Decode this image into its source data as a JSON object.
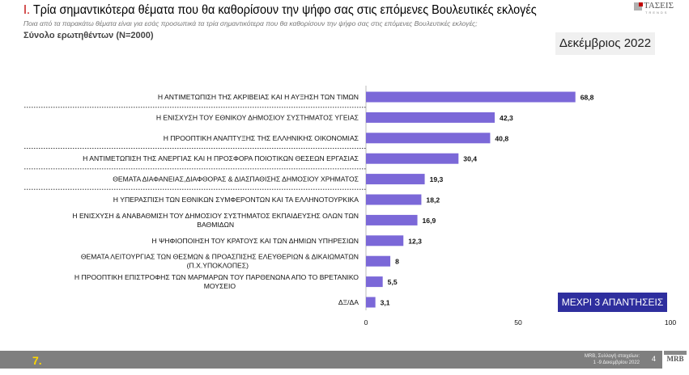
{
  "header": {
    "title_num": "I.",
    "title": " Τρία σημαντικότερα θέματα που θα καθορίσουν την ψήφο σας στις επόμενες Βουλευτικές εκλογές",
    "subtitle": "Ποια από τα παρακάτω θέματα είναι για εσάς προσωπικά τα τρία σημαντικότερα που θα καθορίσουν την ψήφο σας στις επόμενες Βουλευτικές εκλογές;",
    "base": "Σύνολο ερωτηθέντων (N=2000)",
    "date": "Δεκέμβριος 2022",
    "logo": "ΤΑΣΕΙΣ TRENDS"
  },
  "badge": "ΜΕΧΡΙ 3 ΑΠΑΝΤΗΣΕΙΣ",
  "footer": {
    "page_label": "7.",
    "source_line1": "MRB, Συλλογή στοιχείων:",
    "source_line2": "1 -9 Δεκεμβρίου 2022",
    "page": "4",
    "logo": "MRB"
  },
  "chart_data": {
    "type": "bar",
    "orientation": "horizontal",
    "bar_color": "#7b68d8",
    "categories": [
      [
        "Η ΑΝΤΙΜΕΤΩΠΙΣΗ ΤΗΣ ΑΚΡΙΒΕΙΑΣ ΚΑΙ Η ΑΥΞΗΣΗ ΤΩΝ ΤΙΜΩΝ"
      ],
      [
        "Η ΕΝΙΣΧΥΣΗ ΤΟΥ ΕΘΝΙΚΟΥ ΔΗΜΟΣΙΟΥ ΣΥΣΤΗΜΑΤΟΣ ΥΓΕΙΑΣ"
      ],
      [
        "Η ΠΡΟΟΠΤΙΚΗ ΑΝΑΠΤΥΞΗΣ ΤΗΣ ΕΛΛΗΝΙΚΗΣ ΟΙΚΟΝΟΜΙΑΣ"
      ],
      [
        "Η ΑΝΤΙΜΕΤΩΠΙΣΗ ΤΗΣ ΑΝΕΡΓΙΑΣ ΚΑΙ Η ΠΡΟΣΦΟΡΑ ΠΟΙΟΤΙΚΩΝ ΘΕΣΕΩΝ ΕΡΓΑΣΙΑΣ"
      ],
      [
        "ΘΕΜΑΤΑ ΔΙΑΦΑΝΕΙΑΣ,ΔΙΑΦΘΟΡΑΣ & ΔΙΑΣΠΑΘΙΣΗΣ ΔΗΜΟΣΙΟΥ ΧΡΗΜΑΤΟΣ"
      ],
      [
        "Η ΥΠΕΡΑΣΠΙΣΗ ΤΩΝ ΕΘΝΙΚΩΝ ΣΥΜΦΕΡΟΝΤΩΝ ΚΑΙ ΤΑ ΕΛΛΗΝΟΤΟΥΡΚΙΚΑ"
      ],
      [
        "Η ΕΝΙΣΧΥΣΗ & ΑΝΑΒΑΘΜΙΣΗ ΤΟΥ ΔΗΜΟΣΙΟΥ ΣΥΣΤΗΜΑΤΟΣ ΕΚΠΑΙΔΕΥΣΗΣ ΟΛΩΝ ΤΩΝ",
        "ΒΑΘΜΙΔΩΝ"
      ],
      [
        "Η ΨΗΦΙΟΠΟΙΗΣΗ ΤΟΥ ΚΡΑΤΟΥΣ ΚΑΙ ΤΩΝ ΔΗΜΙΩΝ ΥΠΗΡΕΣΙΩΝ"
      ],
      [
        "ΘΕΜΑΤΑ ΛΕΙΤΟΥΡΓΙΑΣ ΤΩΝ ΘΕΣΜΩΝ & ΠΡΟΑΣΠΙΣΗΣ ΕΛΕΥΘΕΡΙΩΝ & ΔΙΚΑΙΩΜΑΤΩΝ",
        "(Π.Χ.ΥΠΟΚΛΟΠΕΣ)"
      ],
      [
        "Η ΠΡΟΟΠΤΙΚΗ ΕΠΙΣΤΡΟΦΗΣ ΤΩΝ ΜΑΡΜΑΡΩΝ ΤΟΥ ΠΑΡΘΕΝΩΝΑ ΑΠΟ ΤΟ ΒΡΕΤΑΝΙΚΟ",
        "ΜΟΥΣΕΙΟ"
      ],
      [
        "ΔΞ/ΔΑ"
      ]
    ],
    "values": [
      68.8,
      42.3,
      40.8,
      30.4,
      19.3,
      18.2,
      16.9,
      12.3,
      8,
      5.5,
      3.1
    ],
    "value_labels": [
      "68,8",
      "42,3",
      "40,8",
      "30,4",
      "19,3",
      "18,2",
      "16,9",
      "12,3",
      "8",
      "5,5",
      "3,1"
    ],
    "xlim": [
      0,
      100
    ],
    "xticks": [
      "0",
      "50",
      "100"
    ],
    "grid": false
  }
}
